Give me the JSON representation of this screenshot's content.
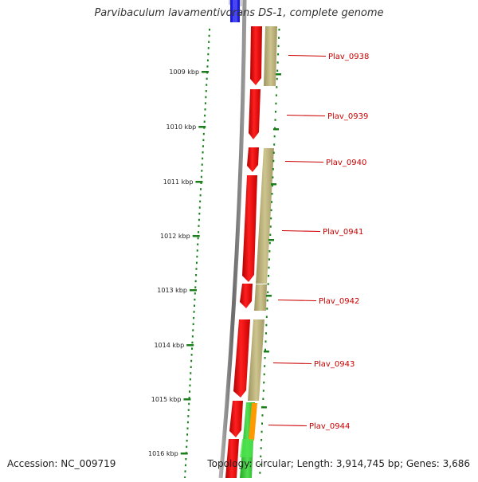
{
  "title": "Parvibaculum lavamentivorans DS-1, complete genome",
  "footer": {
    "accession": "Accession: NC_009719",
    "topology": "Topology: circular; Length: 3,914,745 bp; Genes: 3,686"
  },
  "ruler_labels": [
    "1009 kbp",
    "1010 kbp",
    "1011 kbp",
    "1012 kbp",
    "1013 kbp",
    "1014 kbp",
    "1015 kbp",
    "1016 kbp"
  ],
  "genes": [
    "Plav_0938",
    "Plav_0939",
    "Plav_0940",
    "Plav_0941",
    "Plav_0942",
    "Plav_0943",
    "Plav_0944"
  ],
  "colors": {
    "ruler": "#1a7f1a",
    "cds": "#ff0000",
    "cds_alt": "#b8ad72",
    "label": "#cc0000",
    "backbone": "#808080",
    "green_feature": "#33cc33",
    "orange_feature": "#ff9900",
    "blue_feature": "#1010dd"
  }
}
